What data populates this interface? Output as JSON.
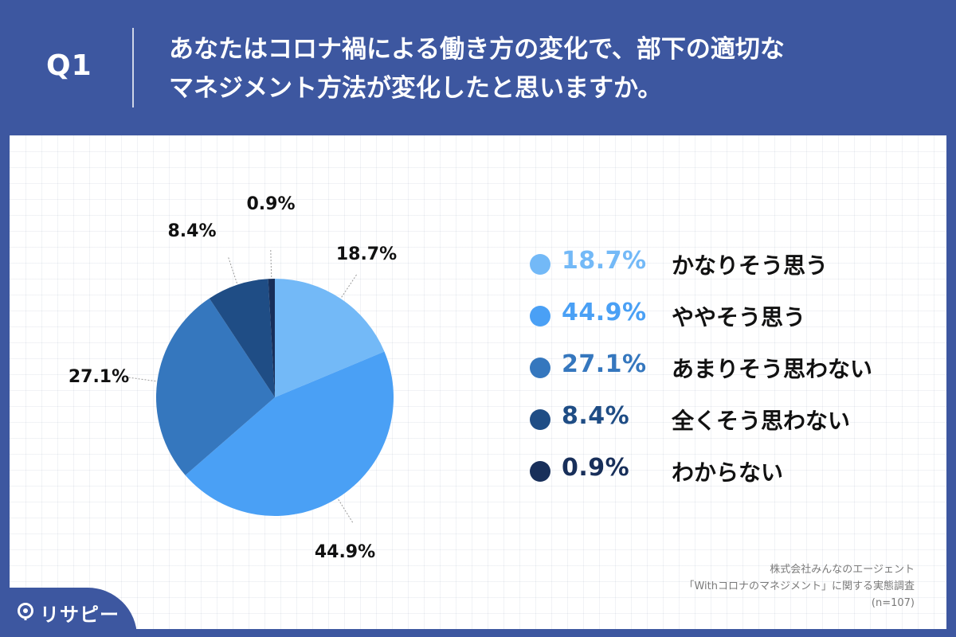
{
  "question": {
    "label": "Q1",
    "line1": "あなたはコロナ禍による働き方の変化で、部下の適切な",
    "line2": "マネジメント方法が変化したと思いますか。"
  },
  "chart_data": {
    "type": "pie",
    "title": "",
    "categories": [
      "かなりそう思う",
      "ややそう思う",
      "あまりそう思わない",
      "全くそう思わない",
      "わからない"
    ],
    "values": [
      18.7,
      44.9,
      27.1,
      8.4,
      0.9
    ],
    "value_labels": [
      "18.7%",
      "44.9%",
      "27.1%",
      "8.4%",
      "0.9%"
    ],
    "colors": [
      "#73b9f7",
      "#4aa0f5",
      "#3577be",
      "#1f4d85",
      "#182f5a"
    ],
    "start_angle_deg": 0,
    "direction": "clockwise",
    "legend_placement": "right"
  },
  "legend": {
    "items": [
      {
        "pct": "18.7%",
        "label": "かなりそう思う",
        "color": "#73b9f7"
      },
      {
        "pct": "44.9%",
        "label": "ややそう思う",
        "color": "#4aa0f5"
      },
      {
        "pct": "27.1%",
        "label": "あまりそう思わない",
        "color": "#3577be"
      },
      {
        "pct": "8.4%",
        "label": "全くそう思わない",
        "color": "#1f4d85"
      },
      {
        "pct": "0.9%",
        "label": "わからない",
        "color": "#182f5a"
      }
    ]
  },
  "source": {
    "line1": "株式会社みんなのエージェント",
    "line2": "「Withコロナのマネジメント」に関する実態調査",
    "line3": "(n=107)"
  },
  "logo": {
    "text": "リサピー"
  }
}
